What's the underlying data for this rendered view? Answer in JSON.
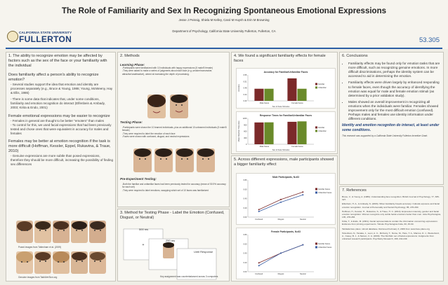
{
  "header": {
    "title": "The Role of Familiarity and Sex In Recognizing Spontaneous Emotional Expressions",
    "authors": "Jesse J Peissig, Shiela M Kelley, Carol M Huynh & Erin M Browning",
    "department": "Department of Psychology, California State University Fullerton, Fullerton, CA",
    "logo_line1": "CALIFORNIA STATE UNIVERSITY",
    "logo_line2": "FULLERTON",
    "poster_number": "53.305"
  },
  "section1": {
    "heading": "1. The ability to recognize emotion may be affected by factors such as the sex of the face or your familiarity with the individual",
    "q1": "Does familiarity affect a person's ability to recognize emotion?",
    "b1": "- Several studies support the idea that  emotion and identity are processes separately (e.g., Bruce & Young, 1986; Young, McWeeny, Hay & Ellis, 1986)",
    "b2": "- There is some data that indicates that, under some conditions, familiarity and emotion recognition do interact (Elfenbein & Ambady, 2003; Kirita & Endo, 2001)",
    "q2": "Female emotional expressions may be easier to recognize",
    "b3": "- Females in general are thought to be better \"emoters\" than males",
    "b4": "- To control for this, we used facial expressions that had been previously tested and chose ones that were equivalent in accuracy for males and females",
    "q3": "Females may be better at emotion recognition if the task is more difficult (Hoffman, Kessler, Eppel, Rukavina, & Traue, 2010)",
    "b5": "- Genuine expressions are more subtle than posed expressions, therefore they should be more difficult, increasing the possibility of finding sex differences",
    "cap1": "Posed images from Tottenham et al. (2009)",
    "cap2": "Genuine images from TakkiVerSion.org"
  },
  "section2": {
    "heading": "2. Methods",
    "learn_title": "Learning Phase:",
    "learn_b1": "-Participants were familiarized with 10 individuals with happy expressions (5 male/5 female)",
    "learn_b2": "-They were asked to make a series of judgments about each face (e.g.,smoker/nonsmoker, attractive/unattractive), aimed at increasing the depth of processing.",
    "test_title": "Testing Phase:",
    "test_b1": "-Participants were shown the 10 learned individuals, plus an additional 10 unlearned individuals (5 male/5 female)",
    "test_b2": "-They were required to label the emotion of each face",
    "test_b3": "-Faces were shown with confused, disgust, and neutral expressions",
    "pre_title": "Pre-Experiment Testing:",
    "pre_b1": "-Both the familiar and unfamiliar faces had been previously tested for accuracy (mean of 50.9% accuracy for each set)",
    "pre_b2": "-They were required to label emotions, swapping which set of 10 faces was familiarized"
  },
  "section3": {
    "heading": "3. Method for Testing Phase  - Label the Emotion (Confused, Disgust, or Neutral)",
    "t1": "500 ms",
    "t2": "250 ms",
    "t3": "Until Response",
    "note": "Key assignment was counterbalanced across 3 computers"
  },
  "section4": {
    "heading": "4. We found a significant familiarity effects for female faces"
  },
  "section5": {
    "heading": "5. Across different expressions, male participants showed a bigger familiarity effect"
  },
  "section6": {
    "heading": "6. Conclusions",
    "c1": "Familiarity effects may be found only for emotion tasks that are more difficult, such as recognizing genuine emotions. In more difficult discriminations, perhaps the identity system can be accessed to aid in determining the emotion.",
    "c2": "Familiarity effects were driven largely by enhanced responding to female faces, even though the accuracy of identifying the emotion was equal for male and female emotion stimuli (as determined by a prior validation study).",
    "c3": "Males showed an overall improvement in recognizing all emotions when the individuals were familiar. Females showed improvement only for the most difficult emotion (confused). Perhaps males and females use identity information under different conditions.",
    "emph": "Identity and emotion recogniton do interact, at least under some conditions.",
    "funding": "This research was supported by a California State University Fullerton Incentive Grant."
  },
  "section7": {
    "heading": "7. References",
    "refs": [
      "Bruce, V., & Young, A. (1986). Understanding face recognition. British Journal of Psychology, 77, 305-327.",
      "Elfenbein, H. A., & Ambady, N. (2003). When familiarity breeds accuracy: Cultural exposure and facial emotion recognition. Journal of Personality and Social Psychology, 85, 276-290.",
      "Hoffman, H., Kessler, H., Rukavina, S., & Traue, H. C. (2010). Expression intensity, gender and facial emotion recognition: Women recognize only subtle facial emotions better than men. Acta Psychologica, 135, 278-283.",
      "Kirita, T., & Endo, M. (2001). Facial representations contain the information concerning expressions: Evidence from priming experiments. Tohoku Psychologica Folia, 60, 45-60.",
      "Tarkkala face place: stimuli database. Retrieved February 3, 2009 from www.face-place.org",
      "Tottenham, N., Tanaka, J., Leon, A. C., McCarry, T., Nurse, M., Hare, T. A., Marcus, D. J., Westerlund, A., Casey, B. J., & Nelson, C. A. (2009). The NimStim set of facial expressions: Judgments from untrained research participants. Psychiatry Research, 168, 242-249."
    ]
  },
  "chart_data": [
    {
      "type": "bar",
      "title": "Accuracy for Familiar/Unfamiliar Faces",
      "categories": [
        "Male Faces",
        "Female Faces"
      ],
      "xlabel": "Sex of Face Stimulus",
      "ylabel": "Accuracy",
      "ylim": [
        0.4,
        0.55
      ],
      "legend": "right",
      "series": [
        {
          "name": "Familiar",
          "values": [
            0.47,
            0.53
          ],
          "color": "#7b2a2a"
        },
        {
          "name": "Unfamiliar",
          "values": [
            0.47,
            0.47
          ],
          "color": "#6a8a2a"
        }
      ]
    },
    {
      "type": "bar",
      "title": "Response Times for Familiar/Unfamiliar Faces",
      "categories": [
        "Male Faces",
        "Female Faces"
      ],
      "xlabel": "Sex of Face Stimulus",
      "ylabel": "Mean Reaction Time (ms)",
      "ylim": [
        0,
        1200
      ],
      "legend": "right",
      "series": [
        {
          "name": "Familiar",
          "values": [
            1010,
            1040
          ],
          "color": "#7b2a2a"
        },
        {
          "name": "Unfamiliar",
          "values": [
            1015,
            1060
          ],
          "color": "#6a8a2a"
        }
      ]
    },
    {
      "type": "line",
      "title": "Male Participants, N=63",
      "categories": [
        "Confused",
        "Disgust",
        "Neutral"
      ],
      "ylim": [
        0,
        0.8
      ],
      "legend": "right",
      "series": [
        {
          "name": "Familiar Faces",
          "values": [
            0.16,
            0.38,
            0.54
          ],
          "color": "#7b2a2a"
        },
        {
          "name": "Unfamiliar Faces",
          "values": [
            0.12,
            0.32,
            0.48
          ],
          "color": "#3b5ea4"
        }
      ]
    },
    {
      "type": "line",
      "title": "Female Participants, N=63",
      "categories": [
        "Confused",
        "Disgust",
        "Neutral"
      ],
      "ylim": [
        0,
        0.8
      ],
      "legend": "right",
      "series": [
        {
          "name": "Familiar Faces",
          "values": [
            0.19,
            0.4,
            0.58
          ],
          "color": "#7b2a2a"
        },
        {
          "name": "Unfamiliar Faces",
          "values": [
            0.13,
            0.4,
            0.58
          ],
          "color": "#3b5ea4"
        }
      ]
    }
  ]
}
